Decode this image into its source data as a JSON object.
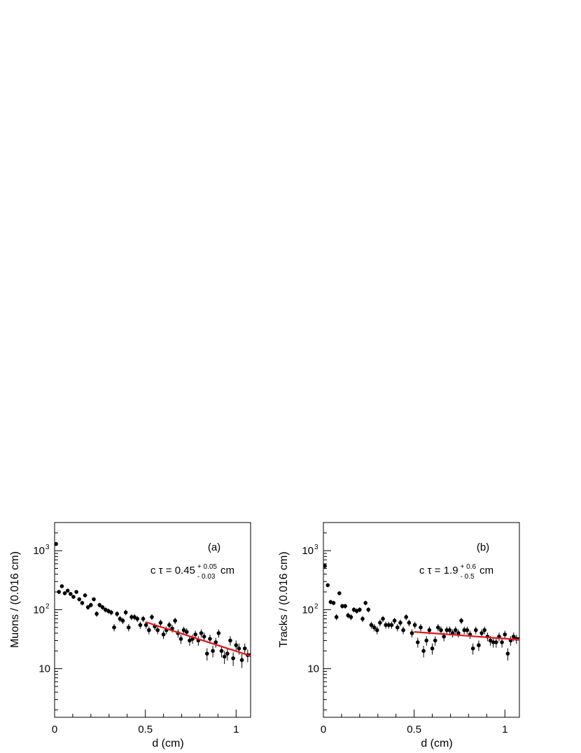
{
  "chart_data": [
    {
      "type": "scatter",
      "panel_label": "(a)",
      "annotation": {
        "prefix": "c τ = 0.45",
        "sup": "+ 0.05",
        "sub": "- 0.03",
        "unit": "cm"
      },
      "xlabel": "d (cm)",
      "ylabel": "Muons / (0.016 cm)",
      "xlim": [
        0,
        1.08
      ],
      "ylim": [
        1.5,
        3000
      ],
      "yscale": "log",
      "grid": false,
      "x_ticks": [
        {
          "v": 0,
          "label": "0"
        },
        {
          "v": 0.5,
          "label": "0.5"
        },
        {
          "v": 1,
          "label": "1"
        }
      ],
      "y_ticks": [
        {
          "v": 10,
          "label": "10"
        },
        {
          "v": 100,
          "label": "10",
          "exp": "2"
        },
        {
          "v": 1000,
          "label": "10",
          "exp": "3"
        }
      ],
      "x": [
        0.008,
        0.024,
        0.04,
        0.056,
        0.072,
        0.088,
        0.104,
        0.12,
        0.136,
        0.152,
        0.168,
        0.184,
        0.2,
        0.216,
        0.232,
        0.248,
        0.264,
        0.28,
        0.296,
        0.312,
        0.328,
        0.344,
        0.36,
        0.376,
        0.392,
        0.408,
        0.424,
        0.44,
        0.456,
        0.472,
        0.488,
        0.504,
        0.52,
        0.536,
        0.552,
        0.568,
        0.584,
        0.6,
        0.616,
        0.632,
        0.648,
        0.664,
        0.68,
        0.696,
        0.712,
        0.728,
        0.744,
        0.76,
        0.776,
        0.792,
        0.808,
        0.824,
        0.84,
        0.856,
        0.872,
        0.888,
        0.904,
        0.92,
        0.936,
        0.952,
        0.968,
        0.984,
        1.0,
        1.016,
        1.032,
        1.048,
        1.064,
        1.08
      ],
      "values": [
        1300,
        200,
        250,
        190,
        210,
        185,
        165,
        200,
        150,
        130,
        175,
        110,
        120,
        150,
        85,
        120,
        110,
        100,
        95,
        90,
        50,
        85,
        70,
        65,
        90,
        50,
        75,
        75,
        70,
        55,
        70,
        55,
        45,
        75,
        52,
        45,
        60,
        38,
        45,
        55,
        48,
        65,
        40,
        32,
        45,
        42,
        30,
        32,
        38,
        30,
        40,
        35,
        18,
        32,
        20,
        28,
        40,
        20,
        16,
        18,
        30,
        15,
        25,
        22,
        14,
        22,
        17,
        17
      ],
      "fit": {
        "x": [
          0.5,
          1.08
        ],
        "y": [
          62,
          16.5
        ],
        "color": "#e8141c"
      }
    },
    {
      "type": "scatter",
      "panel_label": "(b)",
      "annotation": {
        "prefix": "c τ = 1.9",
        "sup": "+ 0.6",
        "sub": "- 0.5",
        "unit": "cm"
      },
      "xlabel": "d (cm)",
      "ylabel": "Tracks / (0.016 cm)",
      "xlim": [
        0,
        1.08
      ],
      "ylim": [
        1.5,
        3000
      ],
      "yscale": "log",
      "grid": false,
      "x_ticks": [
        {
          "v": 0,
          "label": "0"
        },
        {
          "v": 0.5,
          "label": "0.5"
        },
        {
          "v": 1,
          "label": "1"
        }
      ],
      "y_ticks": [
        {
          "v": 10,
          "label": "10"
        },
        {
          "v": 100,
          "label": "10",
          "exp": "2"
        },
        {
          "v": 1000,
          "label": "10",
          "exp": "3"
        }
      ],
      "x": [
        0.008,
        0.024,
        0.04,
        0.056,
        0.072,
        0.088,
        0.104,
        0.12,
        0.136,
        0.152,
        0.168,
        0.184,
        0.2,
        0.216,
        0.232,
        0.248,
        0.264,
        0.28,
        0.296,
        0.312,
        0.328,
        0.344,
        0.36,
        0.376,
        0.392,
        0.408,
        0.424,
        0.44,
        0.456,
        0.472,
        0.488,
        0.504,
        0.52,
        0.536,
        0.552,
        0.568,
        0.584,
        0.6,
        0.616,
        0.632,
        0.648,
        0.664,
        0.68,
        0.696,
        0.712,
        0.728,
        0.744,
        0.76,
        0.776,
        0.792,
        0.808,
        0.824,
        0.84,
        0.856,
        0.872,
        0.888,
        0.904,
        0.92,
        0.936,
        0.952,
        0.968,
        0.984,
        1.0,
        1.016,
        1.032,
        1.048,
        1.064,
        1.08
      ],
      "values": [
        550,
        260,
        135,
        130,
        75,
        190,
        115,
        115,
        80,
        75,
        100,
        95,
        100,
        70,
        130,
        100,
        55,
        50,
        45,
        60,
        70,
        55,
        55,
        55,
        65,
        50,
        60,
        45,
        75,
        60,
        40,
        55,
        28,
        50,
        20,
        30,
        45,
        22,
        30,
        50,
        45,
        35,
        45,
        45,
        40,
        45,
        40,
        65,
        45,
        45,
        38,
        22,
        45,
        25,
        40,
        45,
        35,
        30,
        28,
        28,
        35,
        28,
        38,
        18,
        30,
        35,
        32,
        32
      ],
      "fit": {
        "x": [
          0.5,
          1.08
        ],
        "y": [
          42,
          31
        ],
        "color": "#e8141c"
      }
    }
  ]
}
